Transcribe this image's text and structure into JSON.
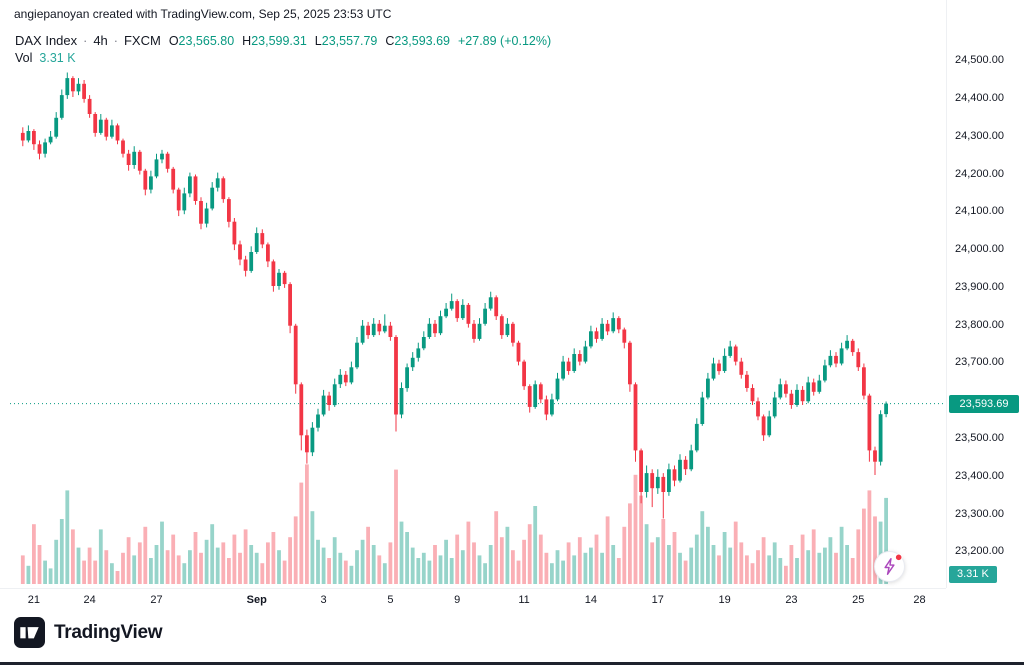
{
  "attribution": "angiepanoyan created with TradingView.com, Sep 25, 2025 23:53 UTC",
  "legend": {
    "symbol": "DAX Index",
    "sep": "·",
    "interval": "4h",
    "exchange": "FXCM",
    "ohlc": [
      {
        "label": "O",
        "value": "23,565.80"
      },
      {
        "label": "H",
        "value": "23,599.31"
      },
      {
        "label": "L",
        "value": "23,557.79"
      },
      {
        "label": "C",
        "value": "23,593.69"
      }
    ],
    "change": "+27.89 (+0.12%)",
    "vol_label": "Vol",
    "vol_value": "3.31 K"
  },
  "badges": {
    "price": "23,593.69",
    "volume": "3.31 K"
  },
  "footer": {
    "brand": "TradingView"
  },
  "colors": {
    "up": "#089981",
    "down": "#f23645",
    "vol_badge": "#26a69a",
    "text": "#131722",
    "price_badge_bg": "#089981"
  },
  "chart_data": {
    "type": "candlestick+volume",
    "title": "DAX Index · 4h · FXCM",
    "last_close": 23593.69,
    "last_volume_k": 3.31,
    "ylim": [
      23180,
      24540
    ],
    "vol_ylim": [
      0,
      5
    ],
    "grid": "off",
    "legend_position": "top-left",
    "format": [
      "open",
      "high",
      "low",
      "close",
      "volume_k"
    ],
    "y_ticks": [
      {
        "v": 24500,
        "label": "24,500.00"
      },
      {
        "v": 24400,
        "label": "24,400.00"
      },
      {
        "v": 24300,
        "label": "24,300.00"
      },
      {
        "v": 24200,
        "label": "24,200.00"
      },
      {
        "v": 24100,
        "label": "24,100.00"
      },
      {
        "v": 24000,
        "label": "24,000.00"
      },
      {
        "v": 23900,
        "label": "23,900.00"
      },
      {
        "v": 23800,
        "label": "23,800.00"
      },
      {
        "v": 23700,
        "label": "23,700.00"
      },
      {
        "v": 23600,
        "label": "23,600.00"
      },
      {
        "v": 23500,
        "label": "23,500.00"
      },
      {
        "v": 23400,
        "label": "23,400.00"
      },
      {
        "v": 23300,
        "label": "23,300.00"
      },
      {
        "v": 23200,
        "label": "23,200.00"
      }
    ],
    "x_ticks": [
      {
        "i": 2,
        "label": "21"
      },
      {
        "i": 12,
        "label": "24"
      },
      {
        "i": 24,
        "label": "27"
      },
      {
        "i": 42,
        "label": "Sep"
      },
      {
        "i": 54,
        "label": "3"
      },
      {
        "i": 66,
        "label": "5"
      },
      {
        "i": 78,
        "label": "9"
      },
      {
        "i": 90,
        "label": "11"
      },
      {
        "i": 102,
        "label": "14"
      },
      {
        "i": 114,
        "label": "17"
      },
      {
        "i": 126,
        "label": "19"
      },
      {
        "i": 138,
        "label": "23"
      },
      {
        "i": 150,
        "label": "25"
      },
      {
        "i": 161,
        "label": "28"
      }
    ],
    "candles": [
      [
        24310,
        24325,
        24275,
        24290,
        1.1
      ],
      [
        24290,
        24330,
        24285,
        24315,
        0.7
      ],
      [
        24315,
        24320,
        24265,
        24280,
        2.3
      ],
      [
        24280,
        24290,
        24240,
        24255,
        1.5
      ],
      [
        24255,
        24295,
        24245,
        24285,
        0.9
      ],
      [
        24285,
        24315,
        24280,
        24300,
        0.6
      ],
      [
        24300,
        24365,
        24295,
        24350,
        1.7
      ],
      [
        24350,
        24425,
        24345,
        24410,
        2.5
      ],
      [
        24410,
        24470,
        24400,
        24455,
        3.6
      ],
      [
        24455,
        24460,
        24405,
        24420,
        2.1
      ],
      [
        24420,
        24455,
        24410,
        24440,
        1.4
      ],
      [
        24440,
        24450,
        24390,
        24400,
        0.9
      ],
      [
        24400,
        24410,
        24350,
        24360,
        1.4
      ],
      [
        24360,
        24365,
        24300,
        24310,
        0.9
      ],
      [
        24310,
        24360,
        24305,
        24345,
        2.1
      ],
      [
        24345,
        24350,
        24290,
        24300,
        1.3
      ],
      [
        24300,
        24345,
        24295,
        24330,
        0.8
      ],
      [
        24330,
        24335,
        24280,
        24290,
        0.5
      ],
      [
        24290,
        24295,
        24245,
        24255,
        1.2
      ],
      [
        24255,
        24265,
        24210,
        24225,
        1.8
      ],
      [
        24225,
        24275,
        24215,
        24260,
        1.1
      ],
      [
        24260,
        24265,
        24200,
        24210,
        1.6
      ],
      [
        24210,
        24215,
        24145,
        24160,
        2.2
      ],
      [
        24160,
        24210,
        24150,
        24195,
        1.0
      ],
      [
        24195,
        24255,
        24190,
        24240,
        1.5
      ],
      [
        24240,
        24265,
        24230,
        24255,
        2.4
      ],
      [
        24255,
        24260,
        24205,
        24215,
        1.3
      ],
      [
        24215,
        24220,
        24150,
        24160,
        1.9
      ],
      [
        24160,
        24165,
        24090,
        24105,
        1.1
      ],
      [
        24105,
        24165,
        24095,
        24150,
        0.8
      ],
      [
        24150,
        24205,
        24140,
        24195,
        1.3
      ],
      [
        24195,
        24200,
        24120,
        24130,
        2.0
      ],
      [
        24130,
        24140,
        24055,
        24070,
        1.2
      ],
      [
        24070,
        24125,
        24060,
        24110,
        1.7
      ],
      [
        24110,
        24180,
        24105,
        24165,
        2.3
      ],
      [
        24165,
        24205,
        24155,
        24190,
        1.4
      ],
      [
        24190,
        24195,
        24125,
        24135,
        1.6
      ],
      [
        24135,
        24140,
        24060,
        24075,
        1.0
      ],
      [
        24075,
        24085,
        24000,
        24015,
        1.9
      ],
      [
        24015,
        24025,
        23960,
        23975,
        1.2
      ],
      [
        23975,
        23985,
        23930,
        23945,
        2.1
      ],
      [
        23945,
        24010,
        23940,
        23995,
        1.5
      ],
      [
        23995,
        24060,
        23990,
        24045,
        1.2
      ],
      [
        24045,
        24055,
        24005,
        24015,
        0.8
      ],
      [
        24015,
        24020,
        23955,
        23970,
        1.6
      ],
      [
        23970,
        23975,
        23890,
        23905,
        2.0
      ],
      [
        23905,
        23950,
        23895,
        23940,
        1.3
      ],
      [
        23940,
        23945,
        23900,
        23910,
        0.9
      ],
      [
        23910,
        23915,
        23780,
        23800,
        1.8
      ],
      [
        23800,
        23805,
        23620,
        23645,
        2.6
      ],
      [
        23645,
        23650,
        23470,
        23510,
        3.9
      ],
      [
        23510,
        23525,
        23435,
        23465,
        4.6
      ],
      [
        23465,
        23545,
        23455,
        23530,
        2.8
      ],
      [
        23530,
        23580,
        23520,
        23565,
        1.7
      ],
      [
        23565,
        23630,
        23560,
        23615,
        1.4
      ],
      [
        23615,
        23625,
        23575,
        23590,
        1.0
      ],
      [
        23590,
        23660,
        23585,
        23645,
        1.8
      ],
      [
        23645,
        23685,
        23635,
        23670,
        1.2
      ],
      [
        23670,
        23680,
        23640,
        23650,
        0.9
      ],
      [
        23650,
        23705,
        23645,
        23690,
        0.7
      ],
      [
        23690,
        23770,
        23685,
        23755,
        1.3
      ],
      [
        23755,
        23815,
        23750,
        23800,
        1.7
      ],
      [
        23800,
        23810,
        23765,
        23775,
        2.2
      ],
      [
        23775,
        23820,
        23770,
        23805,
        1.5
      ],
      [
        23805,
        23815,
        23775,
        23785,
        1.1
      ],
      [
        23785,
        23830,
        23780,
        23800,
        0.8
      ],
      [
        23800,
        23810,
        23760,
        23770,
        1.6
      ],
      [
        23770,
        23775,
        23520,
        23565,
        4.4
      ],
      [
        23565,
        23650,
        23555,
        23635,
        2.4
      ],
      [
        23635,
        23700,
        23625,
        23690,
        2.0
      ],
      [
        23690,
        23730,
        23680,
        23715,
        1.4
      ],
      [
        23715,
        23755,
        23705,
        23740,
        1.0
      ],
      [
        23740,
        23785,
        23735,
        23770,
        1.2
      ],
      [
        23770,
        23820,
        23765,
        23805,
        0.9
      ],
      [
        23805,
        23815,
        23770,
        23780,
        1.5
      ],
      [
        23780,
        23840,
        23775,
        23825,
        1.1
      ],
      [
        23825,
        23860,
        23820,
        23845,
        1.7
      ],
      [
        23845,
        23885,
        23840,
        23865,
        1.0
      ],
      [
        23865,
        23870,
        23810,
        23820,
        1.9
      ],
      [
        23820,
        23870,
        23815,
        23855,
        1.3
      ],
      [
        23855,
        23860,
        23795,
        23805,
        2.4
      ],
      [
        23805,
        23815,
        23755,
        23765,
        1.6
      ],
      [
        23765,
        23820,
        23760,
        23805,
        1.1
      ],
      [
        23805,
        23860,
        23800,
        23845,
        0.8
      ],
      [
        23845,
        23890,
        23840,
        23875,
        1.5
      ],
      [
        23875,
        23880,
        23815,
        23825,
        2.8
      ],
      [
        23825,
        23830,
        23765,
        23775,
        1.8
      ],
      [
        23775,
        23820,
        23770,
        23805,
        2.2
      ],
      [
        23805,
        23810,
        23745,
        23755,
        1.3
      ],
      [
        23755,
        23760,
        23695,
        23705,
        0.9
      ],
      [
        23705,
        23710,
        23630,
        23640,
        1.7
      ],
      [
        23640,
        23645,
        23570,
        23585,
        2.3
      ],
      [
        23585,
        23655,
        23580,
        23645,
        3.0
      ],
      [
        23645,
        23650,
        23595,
        23605,
        1.9
      ],
      [
        23605,
        23615,
        23550,
        23565,
        1.2
      ],
      [
        23565,
        23620,
        23560,
        23605,
        0.8
      ],
      [
        23605,
        23675,
        23600,
        23660,
        1.3
      ],
      [
        23660,
        23720,
        23655,
        23705,
        0.9
      ],
      [
        23705,
        23715,
        23670,
        23680,
        1.6
      ],
      [
        23680,
        23740,
        23675,
        23725,
        1.1
      ],
      [
        23725,
        23735,
        23695,
        23705,
        1.8
      ],
      [
        23705,
        23760,
        23700,
        23745,
        1.2
      ],
      [
        23745,
        23800,
        23740,
        23785,
        1.4
      ],
      [
        23785,
        23795,
        23755,
        23765,
        1.9
      ],
      [
        23765,
        23820,
        23760,
        23805,
        1.2
      ],
      [
        23805,
        23815,
        23775,
        23785,
        2.6
      ],
      [
        23785,
        23835,
        23780,
        23820,
        1.5
      ],
      [
        23820,
        23825,
        23780,
        23790,
        1.0
      ],
      [
        23790,
        23795,
        23740,
        23755,
        2.2
      ],
      [
        23755,
        23760,
        23625,
        23645,
        3.1
      ],
      [
        23645,
        23650,
        23440,
        23470,
        4.2
      ],
      [
        23470,
        23475,
        23330,
        23360,
        3.4
      ],
      [
        23360,
        23430,
        23345,
        23410,
        2.3
      ],
      [
        23410,
        23420,
        23320,
        23370,
        1.6
      ],
      [
        23370,
        23420,
        23355,
        23400,
        1.8
      ],
      [
        23400,
        23410,
        23290,
        23360,
        2.5
      ],
      [
        23360,
        23435,
        23350,
        23420,
        1.5
      ],
      [
        23420,
        23430,
        23375,
        23390,
        2.0
      ],
      [
        23390,
        23460,
        23385,
        23445,
        1.2
      ],
      [
        23445,
        23455,
        23405,
        23420,
        0.9
      ],
      [
        23420,
        23485,
        23415,
        23470,
        1.4
      ],
      [
        23470,
        23555,
        23465,
        23540,
        1.9
      ],
      [
        23540,
        23625,
        23535,
        23610,
        2.8
      ],
      [
        23610,
        23675,
        23605,
        23660,
        2.2
      ],
      [
        23660,
        23715,
        23655,
        23700,
        1.5
      ],
      [
        23700,
        23710,
        23670,
        23680,
        1.1
      ],
      [
        23680,
        23740,
        23675,
        23720,
        2.0
      ],
      [
        23720,
        23760,
        23715,
        23745,
        1.4
      ],
      [
        23745,
        23750,
        23695,
        23705,
        2.4
      ],
      [
        23705,
        23715,
        23660,
        23670,
        1.6
      ],
      [
        23670,
        23680,
        23625,
        23635,
        1.1
      ],
      [
        23635,
        23645,
        23590,
        23600,
        0.8
      ],
      [
        23600,
        23610,
        23550,
        23560,
        1.3
      ],
      [
        23560,
        23565,
        23495,
        23510,
        1.8
      ],
      [
        23510,
        23575,
        23505,
        23560,
        1.1
      ],
      [
        23560,
        23625,
        23555,
        23610,
        1.6
      ],
      [
        23610,
        23660,
        23605,
        23645,
        1.0
      ],
      [
        23645,
        23655,
        23610,
        23620,
        0.7
      ],
      [
        23620,
        23630,
        23580,
        23590,
        1.5
      ],
      [
        23590,
        23645,
        23585,
        23630,
        1.0
      ],
      [
        23630,
        23640,
        23590,
        23600,
        1.9
      ],
      [
        23600,
        23665,
        23595,
        23650,
        1.3
      ],
      [
        23650,
        23660,
        23615,
        23625,
        2.1
      ],
      [
        23625,
        23670,
        23620,
        23655,
        1.2
      ],
      [
        23655,
        23710,
        23650,
        23695,
        1.4
      ],
      [
        23695,
        23735,
        23690,
        23720,
        1.8
      ],
      [
        23720,
        23730,
        23690,
        23700,
        1.2
      ],
      [
        23700,
        23755,
        23695,
        23740,
        2.2
      ],
      [
        23740,
        23775,
        23735,
        23760,
        1.5
      ],
      [
        23760,
        23765,
        23720,
        23730,
        1.0
      ],
      [
        23730,
        23740,
        23680,
        23690,
        2.1
      ],
      [
        23690,
        23700,
        23605,
        23615,
        2.9
      ],
      [
        23615,
        23620,
        23440,
        23470,
        3.6
      ],
      [
        23470,
        23480,
        23405,
        23440,
        2.6
      ],
      [
        23440,
        23576,
        23430,
        23565.8,
        2.4
      ],
      [
        23565.8,
        23599.31,
        23557.79,
        23593.69,
        3.31
      ]
    ],
    "colors": {
      "up": "#089981",
      "down": "#f23645",
      "vol_up": "rgba(8,153,129,0.42)",
      "vol_down": "rgba(242,54,69,0.40)"
    }
  }
}
